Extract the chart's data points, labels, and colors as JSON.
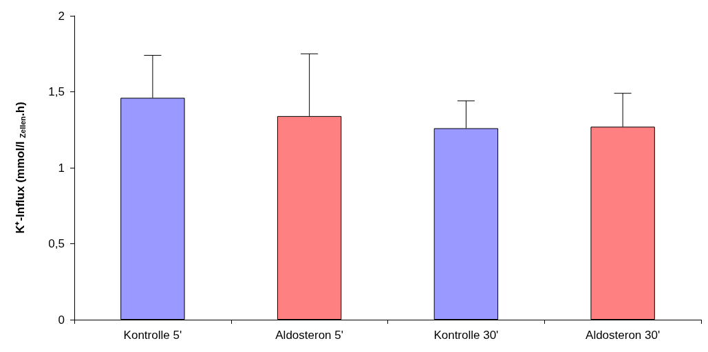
{
  "chart_data": {
    "type": "bar",
    "ylabel": "K⁺-Influx (mmol/l $_{Zellen}$.h)",
    "categories": [
      "Kontrolle 5'",
      "Aldosteron 5'",
      "Kontrolle 30'",
      "Aldosteron 30'"
    ],
    "values": [
      1.46,
      1.34,
      1.26,
      1.27
    ],
    "colors": [
      "#9999ff",
      "#ff8080",
      "#9999ff",
      "#ff8080"
    ],
    "errors": [
      [
        1.46,
        1.74
      ],
      [
        1.34,
        1.75
      ],
      [
        1.26,
        1.44
      ],
      [
        1.27,
        1.49
      ]
    ],
    "ylim": [
      0,
      2
    ],
    "yticks": [
      0,
      {
        "value": 0.5,
        "label": "0,5"
      },
      1,
      {
        "value": 1.5,
        "label": "1,5"
      },
      2
    ],
    "grid": false
  }
}
